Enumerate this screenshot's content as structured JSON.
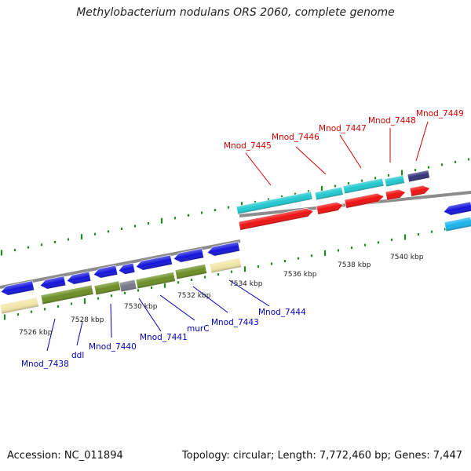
{
  "title": "Methylobacterium nodulans ORS 2060, complete genome",
  "footer": {
    "accession": "Accession: NC_011894",
    "stats": "Topology: circular; Length: 7,772,460 bp; Genes: 7,447"
  },
  "colors": {
    "backbone": "#8c8c8c",
    "tick": "#1f8a1f",
    "forward_gene": "#1414dc",
    "forward_gene_alt": "#2a22b8",
    "reverse_gene": "#f01010",
    "cds_olive": "#6b8e23",
    "cds_gray": "#777788",
    "cds_pale": "#f2e6a6",
    "cds_cyan": "#20c8d0",
    "cds_sky": "#18b4ec",
    "cds_navy": "#33337a",
    "label_forward": "#0000c0",
    "label_reverse": "#d40000",
    "scale_text": "#222222"
  },
  "scale_labels": [
    "7526 kbp",
    "7528 kbp",
    "7530 kbp",
    "7532 kbp",
    "7534 kbp",
    "7536 kbp",
    "7538 kbp",
    "7540 kbp"
  ],
  "forward_gene_labels": [
    "Mnod_7438",
    "ddl",
    "Mnod_7440",
    "Mnod_7441",
    "murC",
    "Mnod_7443",
    "Mnod_7444"
  ],
  "reverse_gene_labels": [
    "Mnod_7445",
    "Mnod_7446",
    "Mnod_7447",
    "Mnod_7448",
    "Mnod_7449"
  ]
}
